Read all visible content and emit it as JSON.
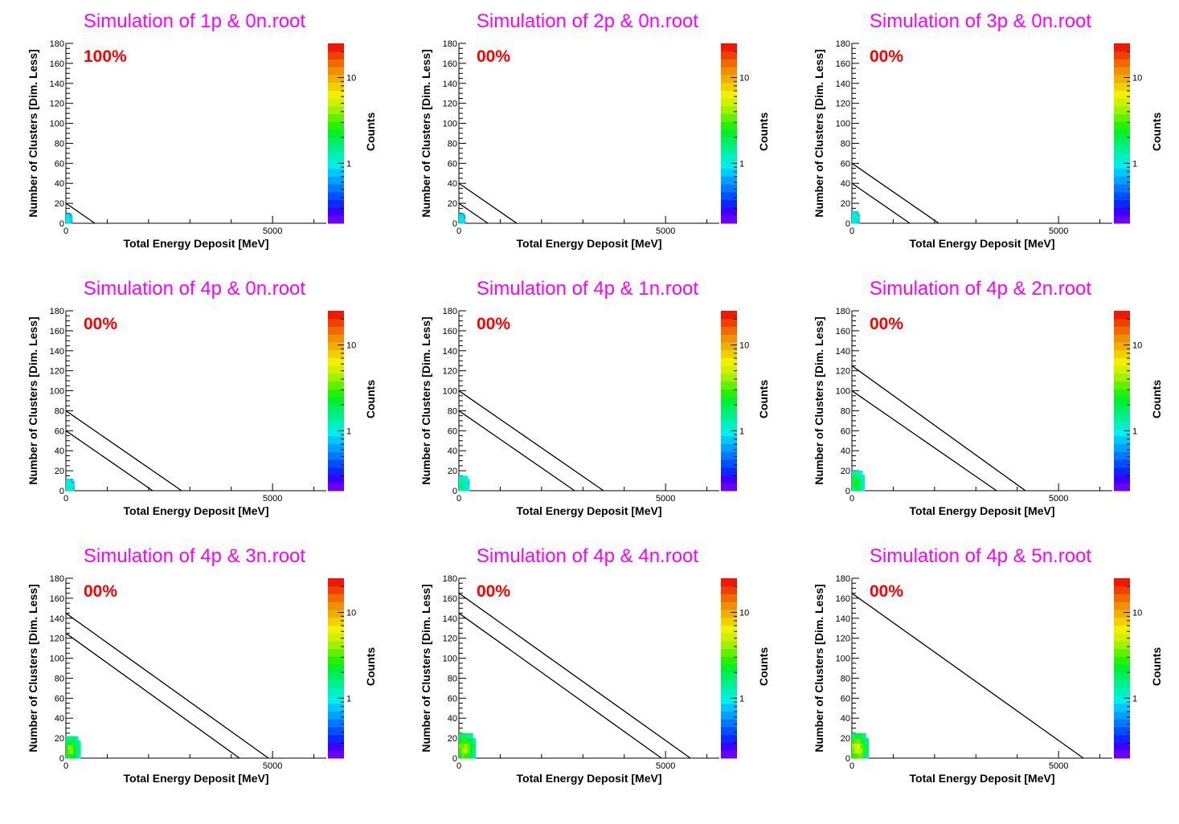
{
  "shared": {
    "xlabel": "Total Energy Deposit [MeV]",
    "ylabel": "Number of Clusters [Dim. Less]",
    "zlabel": "Counts",
    "xlim": [
      0,
      6300
    ],
    "ylim": [
      0,
      180
    ],
    "x_ticks": [
      "0",
      "5000"
    ],
    "y_ticks": [
      "0",
      "20",
      "40",
      "60",
      "80",
      "100",
      "120",
      "140",
      "160",
      "180"
    ],
    "z_ticks": [
      "1",
      "10"
    ],
    "z_scale": "log",
    "colors": {
      "title": "#ff00ff",
      "percent": "#ff0000",
      "line": "#000000"
    },
    "palette": [
      "#6a00ff",
      "#3c00ff",
      "#0a28ff",
      "#0050ff",
      "#0078ff",
      "#00a0ff",
      "#00c8ff",
      "#00f0e8",
      "#00f0c0",
      "#00f090",
      "#00f060",
      "#00f030",
      "#28f000",
      "#60f000",
      "#a0f000",
      "#d0f000",
      "#f0f000",
      "#f0d000",
      "#f0b000",
      "#f09000",
      "#f06a00",
      "#f04000",
      "#f01800"
    ]
  },
  "chart_data": [
    {
      "type": "heatmap",
      "title": "Simulation of 1p & 0n.root",
      "percent": "100%",
      "lines": [
        {
          "x": [
            0,
            700
          ],
          "y": [
            20,
            0
          ]
        }
      ],
      "blob": {
        "x_max": 150,
        "y_max": 10,
        "level": 0.15
      }
    },
    {
      "type": "heatmap",
      "title": "Simulation of 2p & 0n.root",
      "percent": "00%",
      "lines": [
        {
          "x": [
            0,
            700
          ],
          "y": [
            20,
            0
          ]
        },
        {
          "x": [
            0,
            1400
          ],
          "y": [
            40,
            0
          ]
        }
      ],
      "blob": {
        "x_max": 150,
        "y_max": 10,
        "level": 0.15
      }
    },
    {
      "type": "heatmap",
      "title": "Simulation of 3p & 0n.root",
      "percent": "00%",
      "lines": [
        {
          "x": [
            0,
            1400
          ],
          "y": [
            40,
            0
          ]
        },
        {
          "x": [
            0,
            2100
          ],
          "y": [
            60,
            0
          ]
        }
      ],
      "blob": {
        "x_max": 180,
        "y_max": 12,
        "level": 0.2
      }
    },
    {
      "type": "heatmap",
      "title": "Simulation of 4p & 0n.root",
      "percent": "00%",
      "lines": [
        {
          "x": [
            0,
            2100
          ],
          "y": [
            60,
            0
          ]
        },
        {
          "x": [
            0,
            2800
          ],
          "y": [
            80,
            0
          ]
        }
      ],
      "blob": {
        "x_max": 200,
        "y_max": 12,
        "level": 0.2
      }
    },
    {
      "type": "heatmap",
      "title": "Simulation of 4p & 1n.root",
      "percent": "00%",
      "lines": [
        {
          "x": [
            0,
            2800
          ],
          "y": [
            80,
            0
          ]
        },
        {
          "x": [
            0,
            3500
          ],
          "y": [
            100,
            0
          ]
        }
      ],
      "blob": {
        "x_max": 250,
        "y_max": 15,
        "level": 0.25
      }
    },
    {
      "type": "heatmap",
      "title": "Simulation of 4p & 2n.root",
      "percent": "00%",
      "lines": [
        {
          "x": [
            0,
            3500
          ],
          "y": [
            100,
            0
          ]
        },
        {
          "x": [
            0,
            4200
          ],
          "y": [
            125,
            0
          ]
        }
      ],
      "blob": {
        "x_max": 300,
        "y_max": 20,
        "level": 0.35
      }
    },
    {
      "type": "heatmap",
      "title": "Simulation of 4p & 3n.root",
      "percent": "00%",
      "lines": [
        {
          "x": [
            0,
            4200
          ],
          "y": [
            125,
            0
          ]
        },
        {
          "x": [
            0,
            4900
          ],
          "y": [
            145,
            0
          ]
        }
      ],
      "blob": {
        "x_max": 350,
        "y_max": 22,
        "level": 0.45
      }
    },
    {
      "type": "heatmap",
      "title": "Simulation of 4p & 4n.root",
      "percent": "00%",
      "lines": [
        {
          "x": [
            0,
            4900
          ],
          "y": [
            145,
            0
          ]
        },
        {
          "x": [
            0,
            5600
          ],
          "y": [
            165,
            0
          ]
        }
      ],
      "blob": {
        "x_max": 400,
        "y_max": 25,
        "level": 0.5
      }
    },
    {
      "type": "heatmap",
      "title": "Simulation of 4p & 5n.root",
      "percent": "00%",
      "lines": [
        {
          "x": [
            0,
            5600
          ],
          "y": [
            165,
            0
          ]
        }
      ],
      "blob": {
        "x_max": 400,
        "y_max": 25,
        "level": 0.55
      }
    }
  ]
}
